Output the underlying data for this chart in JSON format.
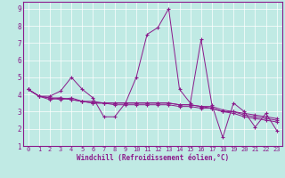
{
  "xlabel": "Windchill (Refroidissement éolien,°C)",
  "xlim": [
    -0.5,
    23.5
  ],
  "ylim": [
    1,
    9.4
  ],
  "xticks": [
    0,
    1,
    2,
    3,
    4,
    5,
    6,
    7,
    8,
    9,
    10,
    11,
    12,
    13,
    14,
    15,
    16,
    17,
    18,
    19,
    20,
    21,
    22,
    23
  ],
  "yticks": [
    1,
    2,
    3,
    4,
    5,
    6,
    7,
    8,
    9
  ],
  "bg_color": "#c0eae4",
  "line_color": "#8b1a8b",
  "grid_color": "#b0ddd8",
  "series": [
    [
      4.3,
      3.9,
      3.9,
      4.2,
      5.0,
      4.3,
      3.8,
      2.7,
      2.7,
      3.5,
      5.0,
      7.5,
      7.9,
      9.0,
      4.3,
      3.5,
      7.2,
      3.4,
      1.5,
      3.5,
      3.0,
      2.1,
      2.9,
      1.9
    ],
    [
      4.3,
      3.9,
      3.8,
      3.7,
      3.8,
      3.6,
      3.5,
      3.5,
      3.5,
      3.5,
      3.5,
      3.5,
      3.5,
      3.5,
      3.4,
      3.4,
      3.3,
      3.3,
      3.1,
      3.0,
      2.9,
      2.8,
      2.7,
      2.6
    ],
    [
      4.3,
      3.9,
      3.8,
      3.8,
      3.7,
      3.6,
      3.6,
      3.5,
      3.5,
      3.5,
      3.5,
      3.5,
      3.5,
      3.5,
      3.4,
      3.4,
      3.3,
      3.2,
      3.0,
      3.0,
      2.8,
      2.7,
      2.6,
      2.5
    ],
    [
      4.3,
      3.9,
      3.7,
      3.8,
      3.7,
      3.6,
      3.5,
      3.5,
      3.4,
      3.4,
      3.4,
      3.4,
      3.4,
      3.4,
      3.3,
      3.3,
      3.2,
      3.2,
      3.0,
      2.9,
      2.7,
      2.6,
      2.5,
      2.4
    ]
  ]
}
